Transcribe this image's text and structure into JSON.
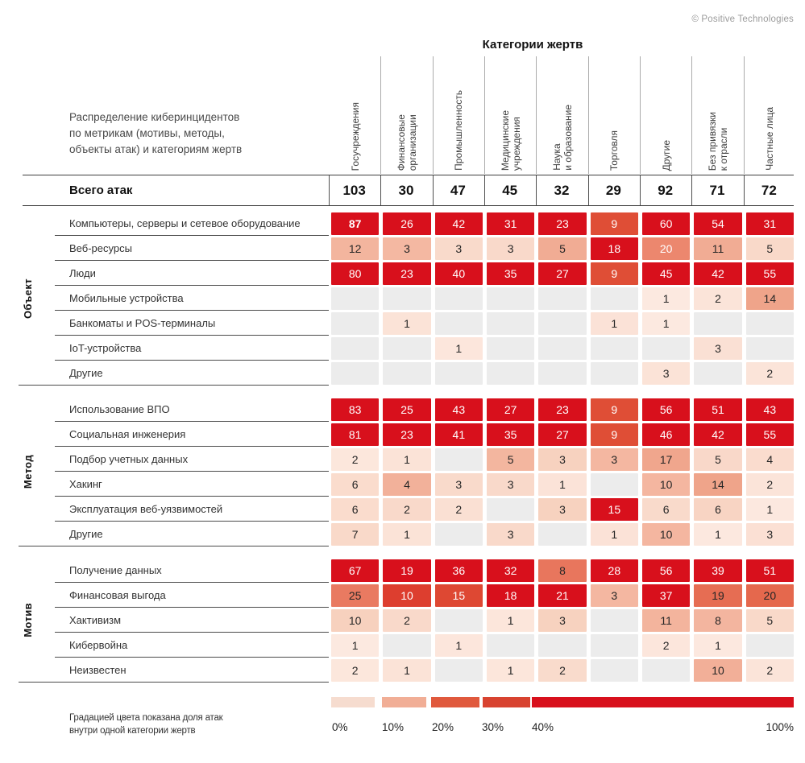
{
  "copyright": "© Positive Technologies",
  "title": "Категории жертв",
  "description": "Распределение киберинцидентов\nпо метрикам (мотивы, методы,\nобъекты атак) и категориям жертв",
  "totals_label": "Всего атак",
  "chart_data": {
    "type": "heatmap",
    "columns": [
      "Госучреждения",
      "Финансовые\nорганизации",
      "Промышленность",
      "Медицинские\nучреждения",
      "Наука\nи образование",
      "Торговля",
      "Другие",
      "Без привязки\nк отрасли",
      "Частные лица"
    ],
    "totals": [
      103,
      30,
      47,
      45,
      32,
      29,
      92,
      71,
      72
    ],
    "sections": [
      {
        "label": "Объект",
        "rows": [
          {
            "label": "Компьютеры, серверы и сетевое оборудование",
            "values": [
              87,
              26,
              42,
              31,
              23,
              9,
              60,
              54,
              31
            ]
          },
          {
            "label": "Веб-ресурсы",
            "values": [
              12,
              3,
              3,
              3,
              5,
              18,
              20,
              11,
              5
            ]
          },
          {
            "label": "Люди",
            "values": [
              80,
              23,
              40,
              35,
              27,
              9,
              45,
              42,
              55
            ]
          },
          {
            "label": "Мобильные устройства",
            "values": [
              null,
              null,
              null,
              null,
              null,
              null,
              1,
              2,
              14
            ]
          },
          {
            "label": "Банкоматы и POS-терминалы",
            "values": [
              null,
              1,
              null,
              null,
              null,
              1,
              1,
              null,
              null
            ]
          },
          {
            "label": "IoT-устройства",
            "values": [
              null,
              null,
              1,
              null,
              null,
              null,
              null,
              3,
              null
            ]
          },
          {
            "label": "Другие",
            "values": [
              null,
              null,
              null,
              null,
              null,
              null,
              3,
              null,
              2
            ]
          }
        ]
      },
      {
        "label": "Метод",
        "rows": [
          {
            "label": "Использование ВПО",
            "values": [
              83,
              25,
              43,
              27,
              23,
              9,
              56,
              51,
              43
            ]
          },
          {
            "label": "Социальная инженерия",
            "values": [
              81,
              23,
              41,
              35,
              27,
              9,
              46,
              42,
              55
            ]
          },
          {
            "label": "Подбор учетных данных",
            "values": [
              2,
              1,
              null,
              5,
              3,
              3,
              17,
              5,
              4
            ]
          },
          {
            "label": "Хакинг",
            "values": [
              6,
              4,
              3,
              3,
              1,
              null,
              10,
              14,
              2
            ]
          },
          {
            "label": "Эксплуатация веб-уязвимостей",
            "values": [
              6,
              2,
              2,
              null,
              3,
              15,
              6,
              6,
              1
            ]
          },
          {
            "label": "Другие",
            "values": [
              7,
              1,
              null,
              3,
              null,
              1,
              10,
              1,
              3
            ]
          }
        ]
      },
      {
        "label": "Мотив",
        "rows": [
          {
            "label": "Получение данных",
            "values": [
              67,
              19,
              36,
              32,
              8,
              28,
              56,
              39,
              51
            ]
          },
          {
            "label": "Финансовая выгода",
            "values": [
              25,
              10,
              15,
              18,
              21,
              3,
              37,
              19,
              20
            ]
          },
          {
            "label": "Хактивизм",
            "values": [
              10,
              2,
              null,
              1,
              3,
              null,
              11,
              8,
              5
            ]
          },
          {
            "label": "Кибервойна",
            "values": [
              1,
              null,
              1,
              null,
              null,
              null,
              2,
              1,
              null
            ]
          },
          {
            "label": "Неизвестен",
            "values": [
              2,
              1,
              null,
              1,
              2,
              null,
              null,
              10,
              2
            ]
          }
        ]
      }
    ],
    "color_scale": {
      "empty_color": "#ececec",
      "dark_text_color": "#262626",
      "white_text_color": "#ffffff",
      "white_text_min_pct": 30,
      "buckets": [
        {
          "min": 0,
          "max": 10,
          "from": "#fdece4",
          "to": "#f7d0bd"
        },
        {
          "min": 10,
          "max": 20,
          "from": "#f4b8a2",
          "to": "#efa389"
        },
        {
          "min": 20,
          "max": 30,
          "from": "#ee9078",
          "to": "#e25c41"
        },
        {
          "min": 30,
          "max": 40,
          "from": "#e05539",
          "to": "#d8101c"
        },
        {
          "min": 40,
          "max": 100,
          "from": "#d8101c",
          "to": "#d8101c"
        }
      ]
    },
    "bold_cells": [
      {
        "section": 0,
        "row": 0,
        "col": 0
      }
    ],
    "white_text_cells": [
      {
        "section": 0,
        "row": 1,
        "col": 6
      }
    ]
  },
  "legend": {
    "caption": "Градацией цвета показана доля атак\nвнутри одной категории жертв",
    "labels": [
      "0%",
      "10%",
      "20%",
      "30%",
      "40%",
      "100%"
    ],
    "segment_colors": [
      "#f6dccf",
      "#f1ae96",
      "#e0593d",
      "#d84330",
      "#d8101c"
    ]
  }
}
